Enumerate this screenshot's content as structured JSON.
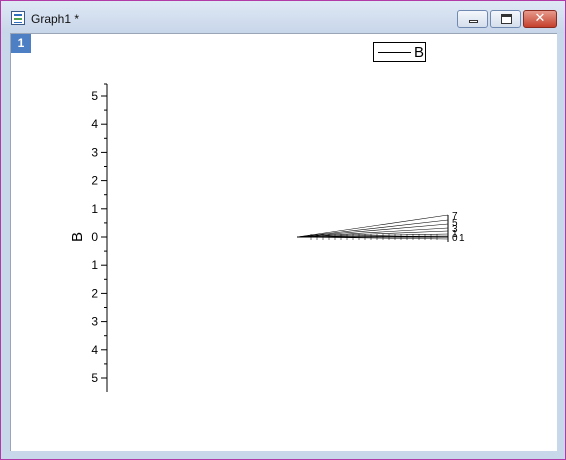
{
  "window": {
    "title": "Graph1 *",
    "icon": "graph-window-icon",
    "controls": {
      "minimize": "minimize-icon",
      "maximize": "maximize-icon",
      "close": "✕"
    }
  },
  "layer_badge": "1",
  "legend": {
    "label": "B"
  },
  "chart_data": {
    "type": "line",
    "ylabel": "B",
    "yticks": [
      "5",
      "4",
      "3",
      "2",
      "1",
      "0",
      "1",
      "2",
      "3",
      "4",
      "5"
    ],
    "point_labels": [
      "7",
      "5",
      "3",
      "1",
      "0",
      "1"
    ],
    "grid": false,
    "legend_position": "top-right"
  }
}
